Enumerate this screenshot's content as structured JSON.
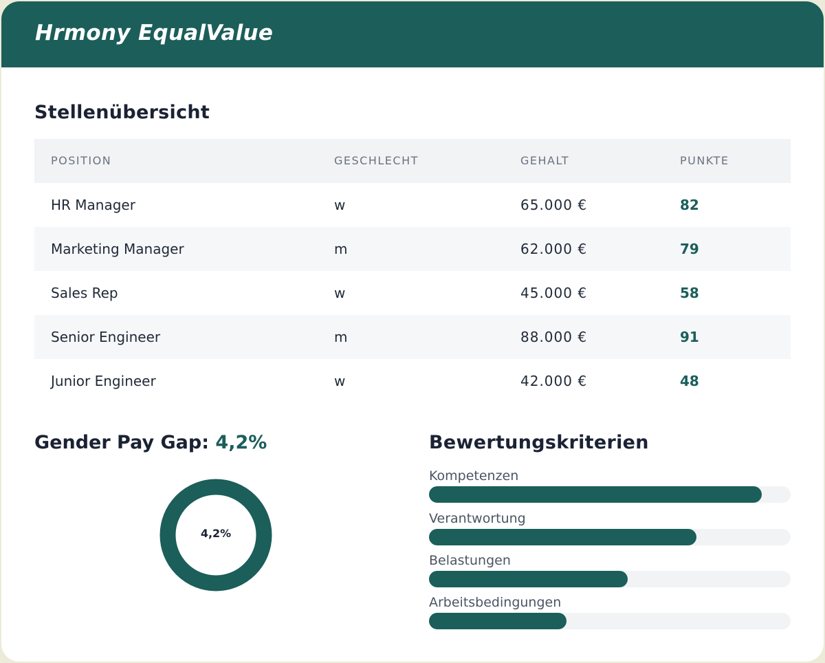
{
  "app": {
    "title": "Hrmony EqualValue"
  },
  "overview": {
    "title": "Stellenübersicht",
    "columns": [
      "POSITION",
      "GESCHLECHT",
      "GEHALT",
      "PUNKTE"
    ],
    "rows": [
      {
        "position": "HR Manager",
        "gender": "w",
        "salary": "65.000 €",
        "points": "82"
      },
      {
        "position": "Marketing Manager",
        "gender": "m",
        "salary": "62.000 €",
        "points": "79"
      },
      {
        "position": "Sales Rep",
        "gender": "w",
        "salary": "45.000 €",
        "points": "58"
      },
      {
        "position": "Senior Engineer",
        "gender": "m",
        "salary": "88.000 €",
        "points": "91"
      },
      {
        "position": "Junior Engineer",
        "gender": "w",
        "salary": "42.000 €",
        "points": "48"
      }
    ]
  },
  "paygap": {
    "label": "Gender Pay Gap:",
    "value": "4,2%",
    "donut_label": "4,2%",
    "gap_fraction": 0.042,
    "colors": {
      "main": "#1b5e5a",
      "gap": "#f0916a"
    }
  },
  "criteria": {
    "title": "Bewertungskriterien",
    "items": [
      {
        "label": "Kompetenzen",
        "fraction": 0.92
      },
      {
        "label": "Verantwortung",
        "fraction": 0.74
      },
      {
        "label": "Belastungen",
        "fraction": 0.55
      },
      {
        "label": "Arbeitsbedingungen",
        "fraction": 0.38
      }
    ]
  },
  "colors": {
    "brand": "#1b5e5a",
    "accent": "#f0916a"
  }
}
